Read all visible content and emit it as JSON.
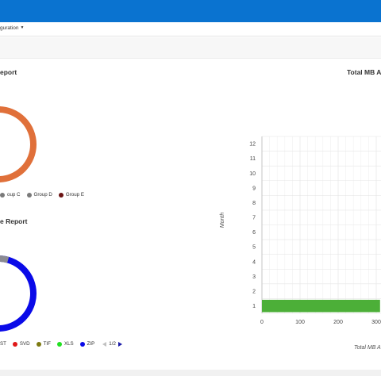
{
  "nav": {
    "configuration_label": "guration"
  },
  "panels": {
    "left_top_title": "eport",
    "left_bottom_title": "e Report",
    "right_title": "Total MB A"
  },
  "donut_top": {
    "color": "#e0703a",
    "legend": [
      {
        "label": "oup C",
        "color": "#7a7a7a"
      },
      {
        "label": "Group D",
        "color": "#7a7a7a"
      },
      {
        "label": "Group E",
        "color": "#6b1313"
      }
    ]
  },
  "donut_bottom": {
    "segments": [
      {
        "label": "ZIP",
        "color": "#0a0ae8",
        "fraction": 0.95
      },
      {
        "label": "gray",
        "color": "#8a8a92",
        "fraction": 0.05
      }
    ],
    "legend": [
      {
        "label": "ST",
        "color": null
      },
      {
        "label": "SVD",
        "color": "#e01818"
      },
      {
        "label": "TIF",
        "color": "#7d7a12"
      },
      {
        "label": "XLS",
        "color": "#22e022"
      },
      {
        "label": "ZIP",
        "color": "#0a0ae8"
      }
    ],
    "pager": "1/2"
  },
  "chart_data": {
    "type": "bar",
    "orientation": "horizontal",
    "ylabel": "Month",
    "xlabel": "Total MB A",
    "y_ticks": [
      "1",
      "2",
      "3",
      "4",
      "5",
      "6",
      "7",
      "8",
      "9",
      "10",
      "11",
      "12"
    ],
    "x_ticks": [
      "0",
      "100",
      "200",
      "300"
    ],
    "xlim": [
      0,
      310
    ],
    "series": [
      {
        "color": "#4caf38",
        "categories": [
          "1"
        ],
        "values": [
          310
        ]
      }
    ],
    "grid": true
  }
}
